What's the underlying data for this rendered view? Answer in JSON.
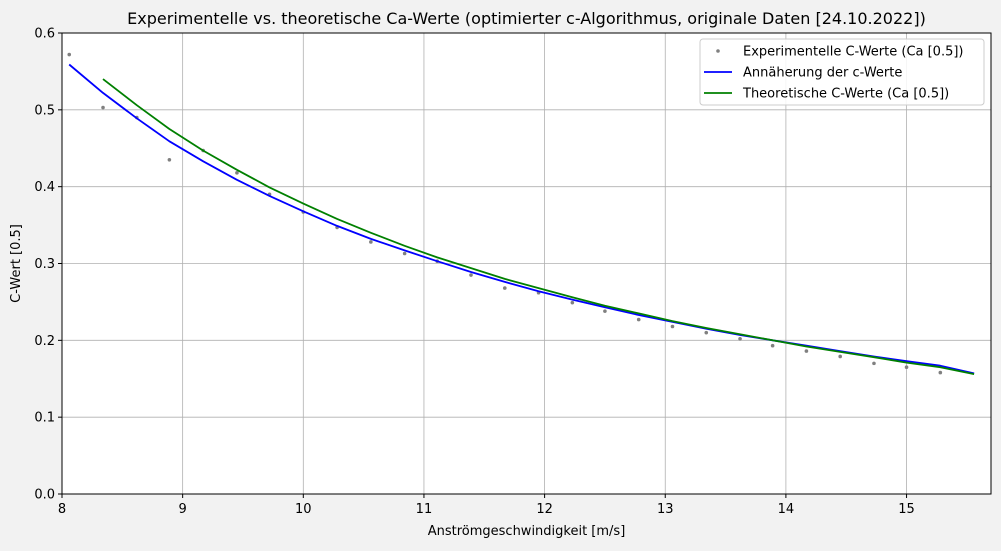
{
  "chart_data": {
    "type": "line",
    "title": "Experimentelle vs. theoretische Ca-Werte (optimierter c-Algorithmus, originale Daten [24.10.2022])",
    "xlabel": "Anströmgeschwindigkeit [m/s]",
    "ylabel": "C-Wert [0.5]",
    "xlim": [
      8.0,
      15.7
    ],
    "ylim": [
      0.0,
      0.6
    ],
    "xticks": [
      8,
      9,
      10,
      11,
      12,
      13,
      14,
      15
    ],
    "xtick_labels": [
      "8",
      "9",
      "10",
      "11",
      "12",
      "13",
      "14",
      "15"
    ],
    "yticks": [
      0.0,
      0.1,
      0.2,
      0.3,
      0.4,
      0.5,
      0.6
    ],
    "ytick_labels": [
      "0.0",
      "0.1",
      "0.2",
      "0.3",
      "0.4",
      "0.5",
      "0.6"
    ],
    "grid": true,
    "legend_position": "top-right",
    "series": [
      {
        "name": "Experimentelle C-Werte (Ca [0.5])",
        "kind": "scatter",
        "color": "#808080",
        "x": [
          8.06,
          8.34,
          8.62,
          8.89,
          9.17,
          9.45,
          9.72,
          10.0,
          10.28,
          10.56,
          10.84,
          11.11,
          11.39,
          11.67,
          11.95,
          12.23,
          12.5,
          12.78,
          13.06,
          13.34,
          13.62,
          13.89,
          14.17,
          14.45,
          14.73,
          15.0,
          15.28
        ],
        "y": [
          0.572,
          0.503,
          0.49,
          0.435,
          0.447,
          0.418,
          0.39,
          0.367,
          0.347,
          0.328,
          0.313,
          0.303,
          0.285,
          0.268,
          0.262,
          0.249,
          0.238,
          0.227,
          0.218,
          0.21,
          0.202,
          0.193,
          0.186,
          0.179,
          0.17,
          0.165,
          0.158
        ]
      },
      {
        "name": "Annäherung der c-Werte",
        "kind": "line",
        "color": "#0000ff",
        "x": [
          8.06,
          8.34,
          8.62,
          8.89,
          9.17,
          9.45,
          9.72,
          10.0,
          10.28,
          10.56,
          10.84,
          11.11,
          11.39,
          11.67,
          11.95,
          12.23,
          12.5,
          12.78,
          13.06,
          13.34,
          13.62,
          13.89,
          14.17,
          14.45,
          14.73,
          15.0,
          15.28,
          15.56
        ],
        "y": [
          0.559,
          0.522,
          0.489,
          0.459,
          0.433,
          0.409,
          0.388,
          0.368,
          0.349,
          0.332,
          0.317,
          0.303,
          0.289,
          0.276,
          0.264,
          0.253,
          0.243,
          0.233,
          0.224,
          0.215,
          0.207,
          0.2,
          0.193,
          0.186,
          0.179,
          0.173,
          0.167,
          0.157
        ]
      },
      {
        "name": "Theoretische C-Werte (Ca [0.5])",
        "kind": "line",
        "color": "#008000",
        "x": [
          8.34,
          8.62,
          8.89,
          9.17,
          9.45,
          9.72,
          10.0,
          10.28,
          10.56,
          10.84,
          11.11,
          11.39,
          11.67,
          11.95,
          12.23,
          12.5,
          12.78,
          13.06,
          13.34,
          13.62,
          13.89,
          14.17,
          14.45,
          14.73,
          15.0,
          15.28,
          15.56
        ],
        "y": [
          0.54,
          0.506,
          0.475,
          0.447,
          0.422,
          0.399,
          0.378,
          0.358,
          0.34,
          0.323,
          0.308,
          0.294,
          0.28,
          0.268,
          0.256,
          0.245,
          0.235,
          0.225,
          0.216,
          0.208,
          0.2,
          0.192,
          0.185,
          0.178,
          0.171,
          0.165,
          0.156
        ]
      }
    ]
  }
}
